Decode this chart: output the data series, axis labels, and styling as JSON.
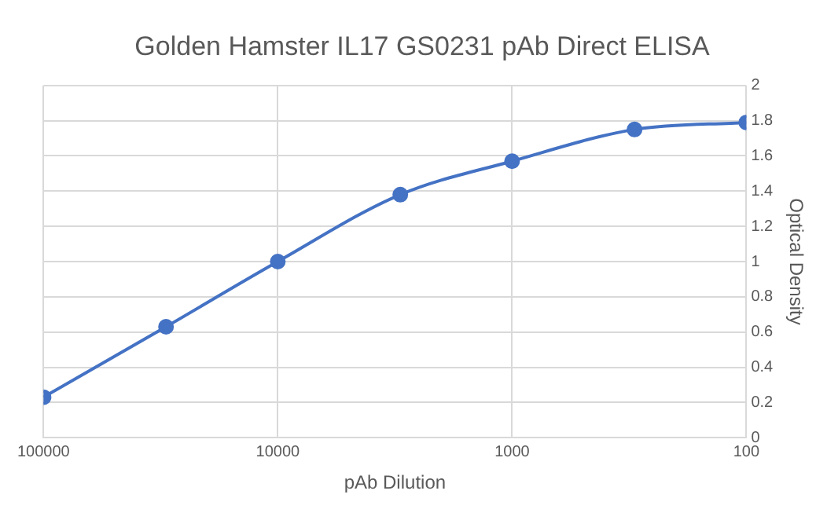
{
  "chart_data": {
    "type": "line",
    "title": "Golden Hamster IL17 GS0231 pAb Direct ELISA",
    "xlabel": "pAb Dilution",
    "ylabel": "Optical Density",
    "x": [
      100000,
      30000,
      10000,
      3000,
      1000,
      300,
      100
    ],
    "series": [
      {
        "color": "#4472c4",
        "values": [
          0.23,
          0.63,
          1.0,
          1.38,
          1.57,
          1.75,
          1.79
        ]
      }
    ],
    "log": "x",
    "xlim": [
      100000,
      100
    ],
    "xticks": [
      100000,
      10000,
      1000,
      100
    ],
    "ylim": [
      0,
      2
    ],
    "yticks": [
      0,
      0.2,
      0.4,
      0.6,
      0.8,
      1,
      1.2,
      1.4,
      1.6,
      1.8,
      2
    ],
    "grid": true,
    "legend": false,
    "marker": "circle",
    "line_style": "solid"
  }
}
